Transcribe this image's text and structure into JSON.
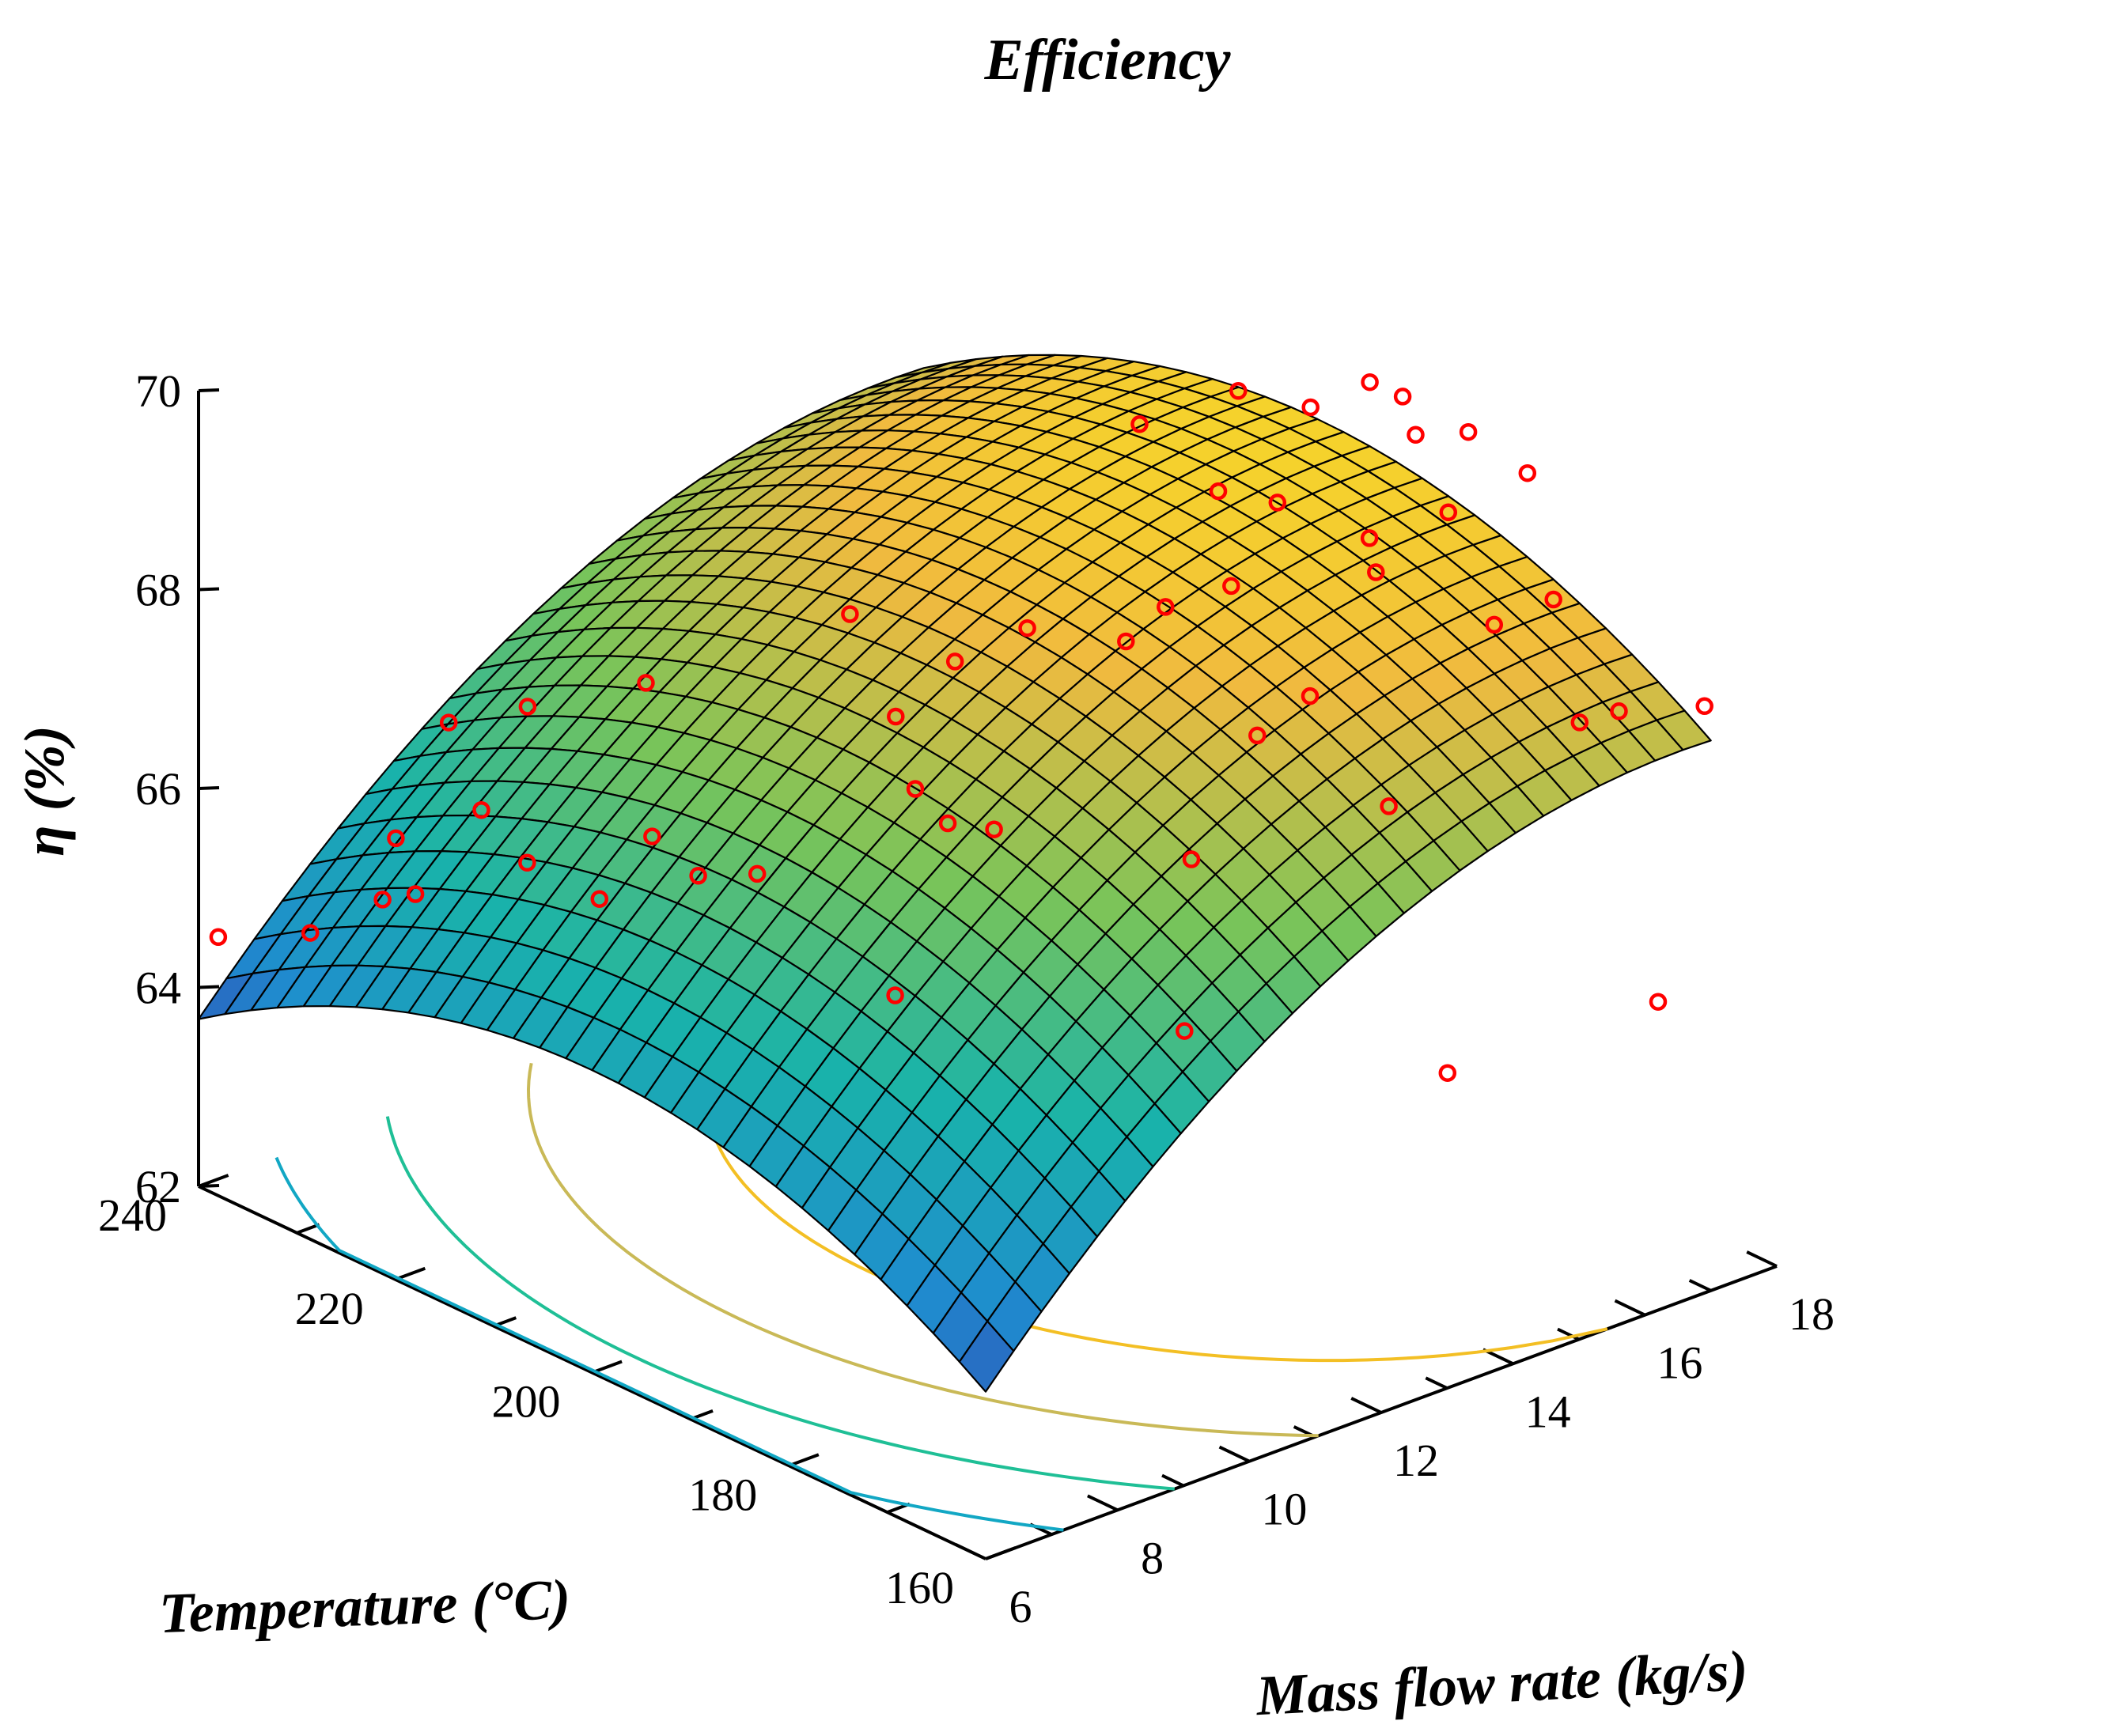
{
  "chart_data": {
    "type": "surface3d",
    "title": "Efficiency",
    "xlabel": "Mass flow rate (kg/s)",
    "ylabel": "Temperature (°C)",
    "zlabel": "η (%)",
    "xlim": [
      6,
      18
    ],
    "ylim": [
      160,
      240
    ],
    "zlim": [
      62,
      70
    ],
    "x_ticks": [
      6,
      8,
      10,
      12,
      14,
      16,
      18
    ],
    "y_ticks": [
      160,
      180,
      200,
      220,
      240
    ],
    "z_ticks": [
      62,
      64,
      66,
      68,
      70
    ],
    "surface": {
      "x_range": [
        6,
        17
      ],
      "y_range": [
        160,
        240
      ],
      "model": "quadratic",
      "coefficients": {
        "intercept": 68.9,
        "x_center": 16.5,
        "x_quad": -0.035,
        "y_center": 200,
        "y_quad": -0.00085
      },
      "colormap": [
        "#3d26a8",
        "#1f8ccf",
        "#19b3aa",
        "#78c45a",
        "#f0ba3f",
        "#f9e21f"
      ]
    },
    "contour_levels": [
      63.0,
      63.5,
      64.5,
      65.5,
      66.5,
      67.5
    ],
    "contour_colors": [
      "#2462c8",
      "#1f86d6",
      "#12a7c4",
      "#1fbf96",
      "#c9b957",
      "#f3bf24"
    ],
    "observations": {
      "marker": "circle",
      "color": "#ff0000",
      "points": [
        [
          6.0,
          238,
          64.6
        ],
        [
          6.5,
          232,
          64.8
        ],
        [
          7.0,
          228,
          65.2
        ],
        [
          7.2,
          226,
          65.3
        ],
        [
          7.5,
          230,
          65.6
        ],
        [
          8.0,
          220,
          65.7
        ],
        [
          8.2,
          226,
          65.9
        ],
        [
          8.5,
          216,
          65.4
        ],
        [
          9.0,
          214,
          66.0
        ],
        [
          9.4,
          212,
          65.6
        ],
        [
          8.6,
          232,
          66.4
        ],
        [
          9.2,
          228,
          66.6
        ],
        [
          10.1,
          222,
          66.9
        ],
        [
          9.4,
          206,
          65.9
        ],
        [
          10.0,
          196,
          65.0
        ],
        [
          10.5,
          194,
          66.7
        ],
        [
          11.2,
          202,
          66.5
        ],
        [
          11.5,
          196,
          66.3
        ],
        [
          11.8,
          208,
          66.8
        ],
        [
          12.0,
          214,
          67.5
        ],
        [
          12.4,
          206,
          67.3
        ],
        [
          12.9,
          202,
          67.7
        ],
        [
          12.0,
          180,
          64.9
        ],
        [
          13.5,
          196,
          67.7
        ],
        [
          13.0,
          186,
          66.1
        ],
        [
          14.1,
          196,
          67.9
        ],
        [
          14.0,
          186,
          67.1
        ],
        [
          14.5,
          192,
          68.2
        ],
        [
          14.8,
          186,
          67.3
        ],
        [
          15.2,
          198,
          68.7
        ],
        [
          15.5,
          194,
          68.7
        ],
        [
          15.1,
          180,
          66.4
        ],
        [
          15.8,
          186,
          68.3
        ],
        [
          16.0,
          188,
          68.5
        ],
        [
          14.2,
          168,
          64.5
        ],
        [
          16.4,
          178,
          68.0
        ],
        [
          16.6,
          184,
          68.8
        ],
        [
          16.8,
          172,
          67.2
        ],
        [
          17.0,
          190,
          69.2
        ],
        [
          17.0,
          176,
          68.2
        ],
        [
          16.8,
          168,
          67.5
        ],
        [
          15.2,
          206,
          69.0
        ],
        [
          16.1,
          202,
          69.3
        ],
        [
          16.6,
          198,
          69.2
        ],
        [
          17.2,
          196,
          69.4
        ],
        [
          17.4,
          194,
          69.3
        ],
        [
          17.5,
          188,
          69.2
        ],
        [
          17.8,
          184,
          68.9
        ],
        [
          16.2,
          160,
          65.1
        ],
        [
          17.8,
          166,
          67.4
        ]
      ]
    }
  }
}
